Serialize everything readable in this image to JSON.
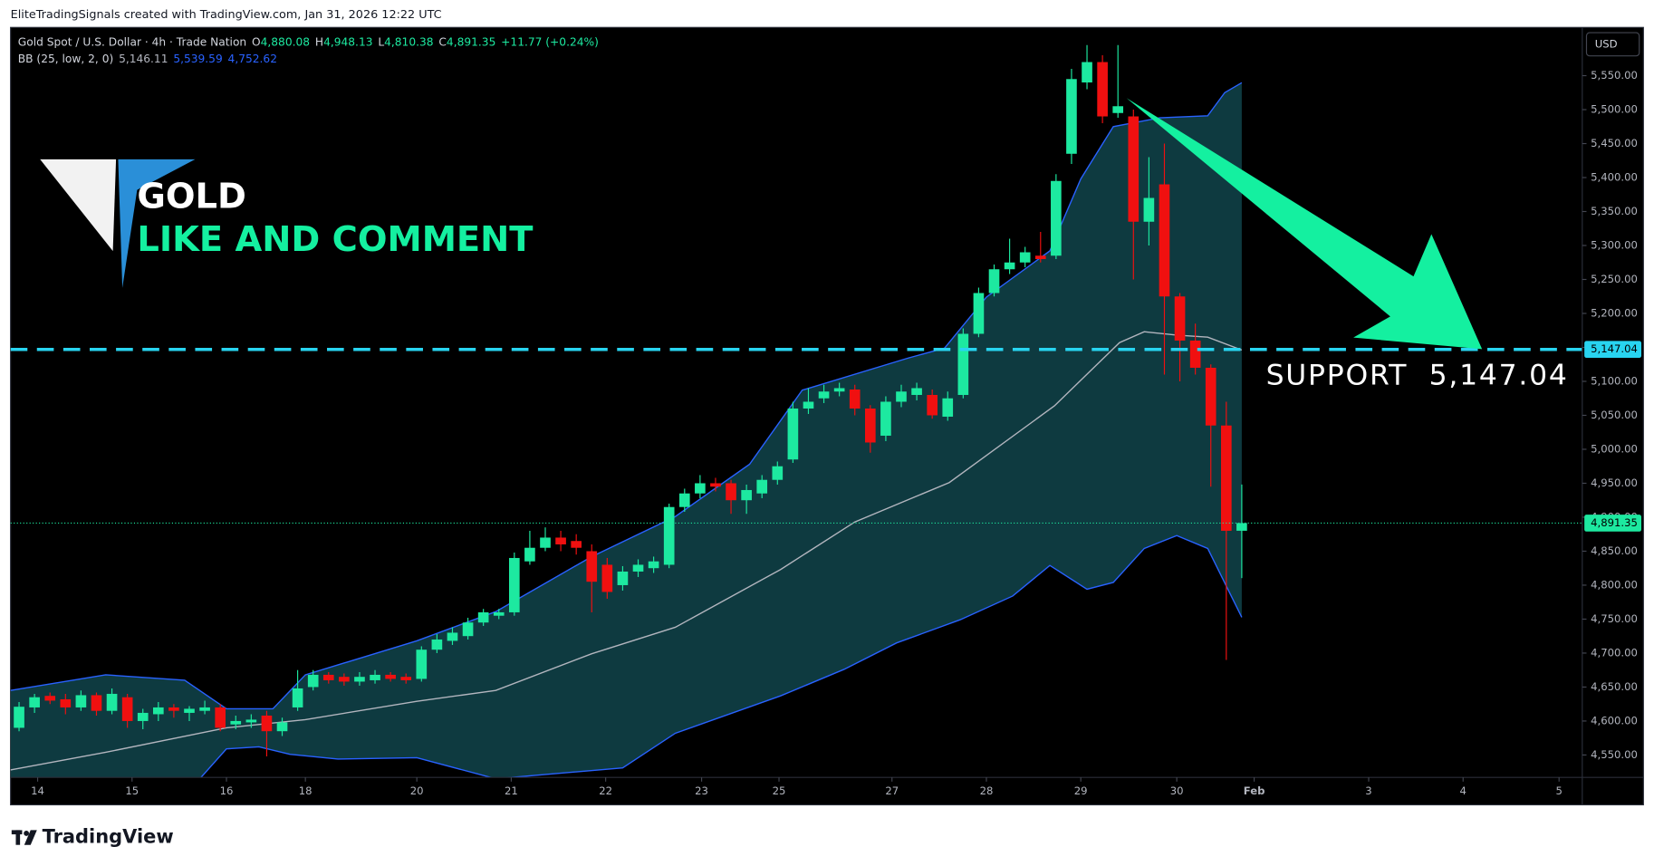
{
  "header": {
    "attribution": "EliteTradingSignals created with TradingView.com, Jan 31, 2026 12:22 UTC"
  },
  "chart_data": {
    "type": "candlestick",
    "legend": {
      "symbol": "Gold Spot / U.S. Dollar · 4h · Trade Nation",
      "ohlc": [
        {
          "label": "O",
          "value": "4,880.08"
        },
        {
          "label": "H",
          "value": "4,948.13"
        },
        {
          "label": "L",
          "value": "4,810.38"
        },
        {
          "label": "C",
          "value": "4,891.35"
        }
      ],
      "change": "+11.77 (+0.24%)"
    },
    "indicator": {
      "name": "BB (25, low, 2, 0)",
      "values": [
        "5,146.11",
        "5,539.59",
        "4,752.62"
      ],
      "colors": [
        "#b2b5be",
        "#2962ff",
        "#2962ff"
      ]
    },
    "annotations": {
      "title": "GOLD",
      "subtitle": "LIKE AND COMMENT"
    },
    "up_color": "#1de9a0",
    "down_color": "#f01010",
    "candles": {
      "open": [
        4590,
        4620,
        4637,
        4632,
        4620,
        4638,
        4615,
        4635,
        4600,
        4610,
        4620,
        4612,
        4615,
        4620,
        4595,
        4598,
        4608,
        4585,
        4620,
        4650,
        4668,
        4665,
        4658,
        4660,
        4668,
        4665,
        4662,
        4705,
        4718,
        4725,
        4745,
        4755,
        4760,
        4835,
        4855,
        4870,
        4865,
        4850,
        4830,
        4800,
        4820,
        4825,
        4830,
        4915,
        4935,
        4950,
        4950,
        4925,
        4935,
        4955,
        4985,
        5060,
        5075,
        5085,
        5088,
        5060,
        5020,
        5070,
        5080,
        5080,
        5048,
        5080,
        5170,
        5230,
        5265,
        5275,
        5285,
        5285,
        5435,
        5540,
        5570,
        5495,
        5490,
        5335,
        5390,
        5225,
        5160,
        5120,
        5035,
        4880.08
      ],
      "high": [
        4628,
        4640,
        4642,
        4640,
        4645,
        4642,
        4648,
        4640,
        4618,
        4628,
        4625,
        4622,
        4630,
        4625,
        4608,
        4610,
        4615,
        4605,
        4675,
        4675,
        4672,
        4670,
        4672,
        4675,
        4672,
        4670,
        4710,
        4728,
        4738,
        4752,
        4765,
        4765,
        4848,
        4880,
        4885,
        4880,
        4875,
        4860,
        4840,
        4828,
        4838,
        4842,
        4920,
        4942,
        4962,
        4958,
        4955,
        4948,
        4962,
        4982,
        5070,
        5090,
        5095,
        5098,
        5095,
        5065,
        5078,
        5095,
        5098,
        5088,
        5085,
        5178,
        5238,
        5272,
        5310,
        5298,
        5320,
        5405,
        5560,
        5595,
        5580,
        5595,
        5500,
        5430,
        5450,
        5230,
        5185,
        5125,
        5070,
        4948.13
      ],
      "low": [
        4585,
        4612,
        4625,
        4610,
        4615,
        4608,
        4610,
        4590,
        4588,
        4600,
        4605,
        4600,
        4610,
        4585,
        4588,
        4590,
        4548,
        4578,
        4615,
        4645,
        4655,
        4652,
        4652,
        4655,
        4658,
        4655,
        4658,
        4700,
        4712,
        4720,
        4740,
        4750,
        4755,
        4830,
        4850,
        4850,
        4845,
        4760,
        4780,
        4792,
        4812,
        4818,
        4825,
        4908,
        4928,
        4938,
        4905,
        4905,
        4928,
        4948,
        4980,
        5052,
        5068,
        5078,
        5050,
        4995,
        5012,
        5062,
        5072,
        5045,
        5042,
        5075,
        5165,
        5225,
        5258,
        5268,
        5275,
        5280,
        5420,
        5530,
        5480,
        5488,
        5250,
        5300,
        5110,
        5100,
        5110,
        4945,
        4690,
        4810.38
      ],
      "close": [
        4621,
        4635,
        4630,
        4620,
        4638,
        4615,
        4640,
        4600,
        4612,
        4620,
        4615,
        4618,
        4620,
        4590,
        4600,
        4602,
        4585,
        4598,
        4648,
        4668,
        4660,
        4658,
        4665,
        4668,
        4662,
        4660,
        4705,
        4720,
        4730,
        4745,
        4760,
        4760,
        4840,
        4855,
        4870,
        4860,
        4855,
        4805,
        4790,
        4820,
        4830,
        4835,
        4915,
        4935,
        4950,
        4945,
        4925,
        4940,
        4955,
        4975,
        5060,
        5070,
        5085,
        5090,
        5060,
        5010,
        5070,
        5085,
        5090,
        5050,
        5075,
        5170,
        5230,
        5265,
        5275,
        5290,
        5280,
        5395,
        5545,
        5570,
        5490,
        5505,
        5335,
        5370,
        5225,
        5160,
        5120,
        5035,
        4880,
        4891.35
      ]
    },
    "bands": [
      {
        "color": "#2962ff",
        "x": [
          -0.55,
          5.6,
          10.7,
          13.4,
          16.4,
          18.5,
          25.7,
          30.8,
          37.0,
          42.4,
          47.2,
          50.6,
          57.4,
          59.8,
          62.5,
          66.6,
          68.6,
          70.7,
          73.7,
          76.8,
          77.9,
          79.0
        ],
        "values": [
          4645,
          4668,
          4660,
          4618,
          4618,
          4668,
          4718,
          4761,
          4842,
          4901,
          4978,
          5087,
          5134,
          5149,
          5224,
          5292,
          5398,
          5475,
          5488,
          5491,
          5525,
          5539.59
        ]
      },
      {
        "color": "#b2b5be",
        "x": [
          -0.55,
          5.6,
          13.4,
          18.5,
          25.7,
          30.8,
          37.0,
          42.4,
          49.2,
          54.0,
          60.1,
          66.9,
          71.1,
          72.7,
          74.8,
          76.8,
          79.0
        ],
        "values": [
          4528,
          4554,
          4590,
          4602,
          4629,
          4645,
          4699,
          4738,
          4823,
          4893,
          4951,
          5064,
          5157,
          5173,
          5168,
          5165,
          5146.11
        ]
      },
      {
        "color": "#2962ff",
        "x": [
          10.7,
          13.4,
          15.5,
          17.5,
          20.6,
          25.7,
          30.8,
          39.0,
          42.4,
          49.2,
          53.3,
          56.7,
          60.8,
          64.2,
          66.6,
          69.0,
          70.7,
          72.7,
          74.8,
          76.8,
          79.0
        ],
        "values": [
          4490,
          4559,
          4562,
          4551,
          4544,
          4546,
          4515,
          4531,
          4582,
          4637,
          4676,
          4715,
          4749,
          4784,
          4829,
          4794,
          4804,
          4854,
          4873,
          4854,
          4752.62
        ]
      }
    ],
    "band_fill": "#0e3a40",
    "ylim": [
      4517,
      5621
    ],
    "yticks": [
      {
        "value": 4550,
        "label": "4,550.00"
      },
      {
        "value": 4600,
        "label": "4,600.00"
      },
      {
        "value": 4650,
        "label": "4,650.00"
      },
      {
        "value": 4700,
        "label": "4,700.00"
      },
      {
        "value": 4750,
        "label": "4,750.00"
      },
      {
        "value": 4800,
        "label": "4,800.00"
      },
      {
        "value": 4850,
        "label": "4,850.00"
      },
      {
        "value": 4900,
        "label": "4,900.00"
      },
      {
        "value": 4950,
        "label": "4,950.00"
      },
      {
        "value": 5000,
        "label": "5,000.00"
      },
      {
        "value": 5050,
        "label": "5,050.00"
      },
      {
        "value": 5100,
        "label": "5,100.00"
      },
      {
        "value": 5150,
        "label": "5,150.00"
      },
      {
        "value": 5200,
        "label": "5,200.00"
      },
      {
        "value": 5250,
        "label": "5,250.00"
      },
      {
        "value": 5300,
        "label": "5,300.00"
      },
      {
        "value": 5350,
        "label": "5,350.00"
      },
      {
        "value": 5400,
        "label": "5,400.00"
      },
      {
        "value": 5450,
        "label": "5,450.00"
      },
      {
        "value": 5500,
        "label": "5,500.00"
      },
      {
        "value": 5550,
        "label": "5,550.00"
      }
    ],
    "xlim": [
      -0.55,
      101
    ],
    "xticks": [
      {
        "value": 1.2,
        "label": "14"
      },
      {
        "value": 7.3,
        "label": "15"
      },
      {
        "value": 13.4,
        "label": "16"
      },
      {
        "value": 18.5,
        "label": "18"
      },
      {
        "value": 25.7,
        "label": "20"
      },
      {
        "value": 31.8,
        "label": "21"
      },
      {
        "value": 37.9,
        "label": "22"
      },
      {
        "value": 44.1,
        "label": "23"
      },
      {
        "value": 49.1,
        "label": "25"
      },
      {
        "value": 56.4,
        "label": "27"
      },
      {
        "value": 62.5,
        "label": "28"
      },
      {
        "value": 68.6,
        "label": "29"
      },
      {
        "value": 74.8,
        "label": "30"
      },
      {
        "value": 79.8,
        "label": "Feb"
      },
      {
        "value": 87.2,
        "label": "3"
      },
      {
        "value": 93.3,
        "label": "4"
      },
      {
        "value": 99.5,
        "label": "5"
      }
    ],
    "support": {
      "value": 5147.04,
      "label": "5,147.04",
      "text": "SUPPORT  5,147.04",
      "color": "#28d4f0"
    },
    "last_price": {
      "value": 4891.35,
      "label": "4,891.35",
      "color": "#1de9a0"
    },
    "currency": "USD"
  },
  "footer": {
    "brand": "TradingView"
  }
}
